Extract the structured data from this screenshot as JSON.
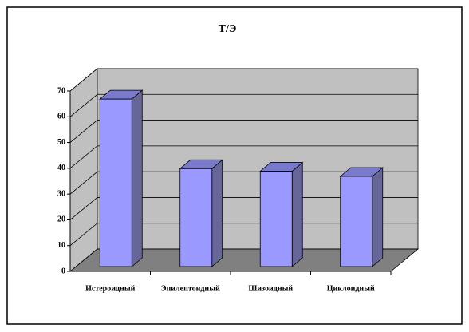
{
  "chart_data": {
    "type": "bar",
    "title": "Т/Э",
    "categories": [
      "Истероидный",
      "Эпилептоидный",
      "Шизоидный",
      "Циклоидный"
    ],
    "values": [
      65,
      38,
      37,
      35
    ],
    "color": "#9999ff",
    "ylim": [
      0,
      70
    ],
    "yticks": [
      0,
      10,
      20,
      30,
      40,
      50,
      60,
      70
    ],
    "grid": true
  }
}
